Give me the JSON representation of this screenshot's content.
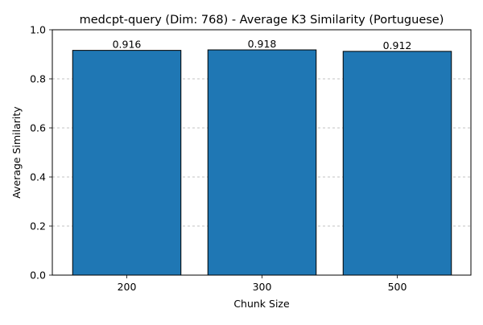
{
  "chart_data": {
    "type": "bar",
    "title": "medcpt-query (Dim: 768) - Average K3 Similarity (Portuguese)",
    "xlabel": "Chunk Size",
    "ylabel": "Average Similarity",
    "categories": [
      "200",
      "300",
      "500"
    ],
    "values": [
      0.916,
      0.918,
      0.912
    ],
    "value_labels": [
      "0.916",
      "0.918",
      "0.912"
    ],
    "ylim": [
      0,
      1.0
    ],
    "yticks": [
      0.0,
      0.2,
      0.4,
      0.6,
      0.8,
      1.0
    ],
    "ytick_labels": [
      "0.0",
      "0.2",
      "0.4",
      "0.6",
      "0.8",
      "1.0"
    ],
    "grid": "y-dashed",
    "bar_color": "#1f77b4",
    "bar_edge_color": "#000000"
  }
}
